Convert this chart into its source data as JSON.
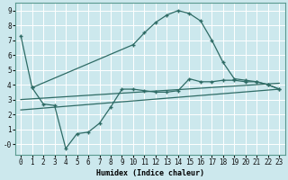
{
  "xlabel": "Humidex (Indice chaleur)",
  "background_color": "#cce8ed",
  "grid_color": "#ffffff",
  "line_color": "#2e6b65",
  "xlim": [
    -0.5,
    23.5
  ],
  "ylim": [
    -0.7,
    9.5
  ],
  "yticks": [
    0,
    1,
    2,
    3,
    4,
    5,
    6,
    7,
    8,
    9
  ],
  "ytick_labels": [
    "-0",
    "1",
    "2",
    "3",
    "4",
    "5",
    "6",
    "7",
    "8",
    "9"
  ],
  "xticks": [
    0,
    1,
    2,
    3,
    4,
    5,
    6,
    7,
    8,
    9,
    10,
    11,
    12,
    13,
    14,
    15,
    16,
    17,
    18,
    19,
    20,
    21,
    22,
    23
  ],
  "line1_x": [
    0,
    1,
    10,
    11,
    12,
    13,
    14,
    15,
    16,
    17,
    18,
    19,
    20,
    21,
    22,
    23
  ],
  "line1_y": [
    7.3,
    3.8,
    6.7,
    7.5,
    8.2,
    8.7,
    9.0,
    8.8,
    8.3,
    7.0,
    5.5,
    4.4,
    4.3,
    4.2,
    4.0,
    3.7
  ],
  "line2_x": [
    1,
    2,
    3,
    4,
    5,
    6,
    7,
    8,
    9,
    10,
    11,
    12,
    13,
    14,
    15,
    16,
    17,
    18,
    19,
    20,
    21,
    22,
    23
  ],
  "line2_y": [
    3.8,
    2.7,
    2.6,
    -0.3,
    0.7,
    0.8,
    1.4,
    2.5,
    3.7,
    3.7,
    3.6,
    3.5,
    3.5,
    3.6,
    4.4,
    4.2,
    4.2,
    4.3,
    4.3,
    4.2,
    4.2,
    4.0,
    3.7
  ],
  "line3_x": [
    0,
    23
  ],
  "line3_y": [
    2.3,
    3.7
  ],
  "line4_x": [
    0,
    23
  ],
  "line4_y": [
    3.0,
    4.1
  ],
  "marker": "+"
}
